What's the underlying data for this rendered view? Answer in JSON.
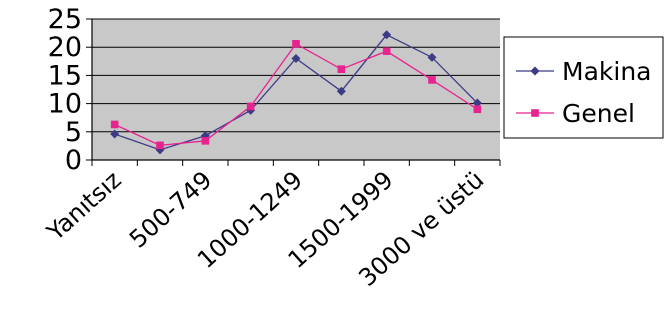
{
  "chart_data": {
    "type": "line",
    "categories": [
      "Yanıtsız",
      "",
      "500-749",
      "",
      "1000-1249",
      "",
      "1500-1999",
      "",
      "3000 ve üstü"
    ],
    "series": [
      {
        "name": "Makina",
        "values": [
          4.6,
          1.8,
          4.3,
          8.8,
          18,
          12.2,
          22.2,
          18.2,
          10.1
        ],
        "color": "#3b3b86",
        "marker": "diamond"
      },
      {
        "name": "Genel",
        "values": [
          6.3,
          2.6,
          3.4,
          9.5,
          20.6,
          16.1,
          19.3,
          14.2,
          9
        ],
        "color": "#e8228f",
        "marker": "square"
      }
    ],
    "yticks": [
      "0",
      "5",
      "10",
      "15",
      "20",
      "25"
    ],
    "ylim": [
      0,
      25
    ],
    "grid": true,
    "plot_background": "#c8c8c8",
    "legend_position": "right"
  }
}
